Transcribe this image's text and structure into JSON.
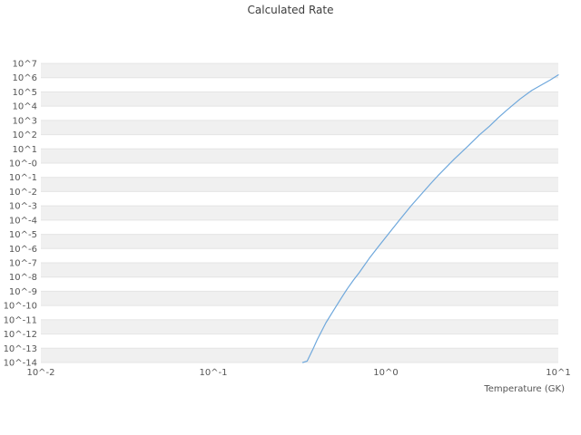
{
  "title": "Calculated Rate",
  "x_axis": {
    "label": "Temperature (GK)",
    "ticks": [
      "10^-2",
      "10^-1",
      "10^0",
      "10^1"
    ],
    "tick_log10": [
      -2,
      -1,
      0,
      1
    ]
  },
  "y_axis": {
    "ticks": [
      "10^7",
      "10^6",
      "10^5",
      "10^4",
      "10^3",
      "10^2",
      "10^1",
      "10^-0",
      "10^-1",
      "10^-2",
      "10^-3",
      "10^-4",
      "10^-5",
      "10^-6",
      "10^-7",
      "10^-8",
      "10^-9",
      "10^-10",
      "10^-11",
      "10^-12",
      "10^-13",
      "10^-14"
    ]
  },
  "colors": {
    "background": "#ffffff",
    "band": "#f0f0f0",
    "grid": "#e4e4e4",
    "text": "#555555",
    "line": "#6fa8dc"
  },
  "chart_data": {
    "type": "line",
    "title": "Calculated Rate",
    "xlabel": "Temperature (GK)",
    "ylabel": "",
    "x_scale": "log",
    "y_scale": "log",
    "x_log_range": [
      -2,
      1
    ],
    "y_log_range": [
      -14,
      7
    ],
    "grid": "horizontal-bands",
    "legend": "none",
    "series": [
      {
        "name": "calculated-rate",
        "color": "#6fa8dc",
        "points": [
          [
            0.33,
            -14.0
          ],
          [
            0.35,
            -13.9
          ],
          [
            0.38,
            -13.0
          ],
          [
            0.4,
            -12.4
          ],
          [
            0.45,
            -11.2
          ],
          [
            0.5,
            -10.3
          ],
          [
            0.55,
            -9.5
          ],
          [
            0.6,
            -8.8
          ],
          [
            0.65,
            -8.2
          ],
          [
            0.7,
            -7.7
          ],
          [
            0.8,
            -6.7
          ],
          [
            0.9,
            -5.9
          ],
          [
            1.0,
            -5.2
          ],
          [
            1.2,
            -4.0
          ],
          [
            1.4,
            -3.0
          ],
          [
            1.6,
            -2.2
          ],
          [
            1.8,
            -1.5
          ],
          [
            2.0,
            -0.9
          ],
          [
            2.5,
            0.3
          ],
          [
            3.0,
            1.2
          ],
          [
            3.5,
            2.0
          ],
          [
            4.0,
            2.6
          ],
          [
            4.5,
            3.2
          ],
          [
            5.0,
            3.7
          ],
          [
            6.0,
            4.5
          ],
          [
            7.0,
            5.1
          ],
          [
            8.0,
            5.5
          ],
          [
            9.0,
            5.85
          ],
          [
            10.0,
            6.2
          ]
        ]
      }
    ]
  }
}
